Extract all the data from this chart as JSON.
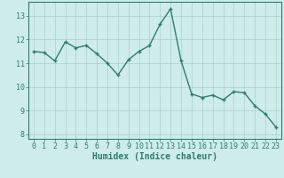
{
  "x": [
    0,
    1,
    2,
    3,
    4,
    5,
    6,
    7,
    8,
    9,
    10,
    11,
    12,
    13,
    14,
    15,
    16,
    17,
    18,
    19,
    20,
    21,
    22,
    23
  ],
  "y": [
    11.5,
    11.45,
    11.1,
    11.9,
    11.65,
    11.75,
    11.4,
    11.0,
    10.5,
    11.15,
    11.5,
    11.75,
    12.65,
    13.3,
    11.1,
    9.7,
    9.55,
    9.65,
    9.45,
    9.8,
    9.75,
    9.2,
    8.85,
    8.3
  ],
  "line_color": "#2e7d6e",
  "marker": "+",
  "bg_color": "#ceecea",
  "grid_color": "#aecec8",
  "xlabel": "Humidex (Indice chaleur)",
  "ylim": [
    7.8,
    13.6
  ],
  "xlim": [
    -0.5,
    23.5
  ],
  "yticks": [
    8,
    9,
    10,
    11,
    12,
    13
  ],
  "xtick_labels": [
    "0",
    "1",
    "2",
    "3",
    "4",
    "5",
    "6",
    "7",
    "8",
    "9",
    "10",
    "11",
    "12",
    "13",
    "14",
    "15",
    "16",
    "17",
    "18",
    "19",
    "20",
    "21",
    "22",
    "23"
  ],
  "xticks": [
    0,
    1,
    2,
    3,
    4,
    5,
    6,
    7,
    8,
    9,
    10,
    11,
    12,
    13,
    14,
    15,
    16,
    17,
    18,
    19,
    20,
    21,
    22,
    23
  ],
  "text_color": "#2e7d6e",
  "font_size_xlabel": 7.0,
  "font_size_ticks": 6.0,
  "linewidth": 1.0,
  "markersize": 3.5,
  "markeredgewidth": 1.0
}
